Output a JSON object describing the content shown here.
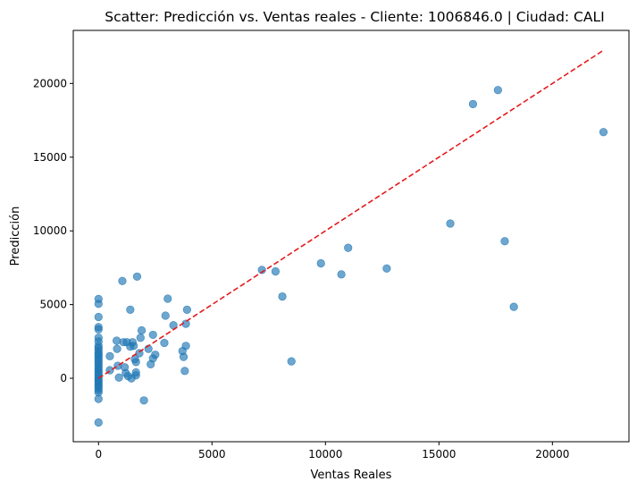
{
  "chart_data": {
    "type": "scatter",
    "title": "Scatter: Predicción vs. Ventas reales - Cliente: 1006846.0 | Ciudad: CALI",
    "xlabel": "Ventas Reales",
    "ylabel": "Predicción",
    "xlim": [
      -1113,
      23373
    ],
    "ylim": [
      -4303,
      23599
    ],
    "xticks": [
      0,
      5000,
      10000,
      15000,
      20000
    ],
    "xtick_labels": [
      "0",
      "5000",
      "10000",
      "15000",
      "20000"
    ],
    "yticks": [
      0,
      5000,
      10000,
      15000,
      20000
    ],
    "ytick_labels": [
      "0",
      "5000",
      "10000",
      "15000",
      "20000"
    ],
    "grid": false,
    "legend": false,
    "point_color": "#1f77b4",
    "reference_line": {
      "style": "dashed",
      "color": "#e41a1c",
      "x": [
        0,
        22260
      ],
      "y": [
        0,
        22260
      ]
    },
    "points": [
      [
        0,
        5380
      ],
      [
        0,
        5050
      ],
      [
        0,
        4160
      ],
      [
        0,
        3470
      ],
      [
        0,
        3320
      ],
      [
        0,
        2750
      ],
      [
        0,
        2500
      ],
      [
        0,
        2200
      ],
      [
        0,
        2050
      ],
      [
        0,
        1900
      ],
      [
        0,
        1720
      ],
      [
        0,
        1600
      ],
      [
        0,
        1450
      ],
      [
        0,
        1300
      ],
      [
        0,
        1150
      ],
      [
        0,
        1000
      ],
      [
        0,
        850
      ],
      [
        0,
        700
      ],
      [
        0,
        560
      ],
      [
        0,
        420
      ],
      [
        0,
        280
      ],
      [
        0,
        140
      ],
      [
        0,
        0
      ],
      [
        0,
        -120
      ],
      [
        0,
        -250
      ],
      [
        0,
        -380
      ],
      [
        0,
        -520
      ],
      [
        0,
        -650
      ],
      [
        0,
        -800
      ],
      [
        0,
        -950
      ],
      [
        0,
        -1400
      ],
      [
        0,
        -3000
      ],
      [
        500,
        1500
      ],
      [
        500,
        550
      ],
      [
        800,
        2550
      ],
      [
        820,
        2000
      ],
      [
        850,
        850
      ],
      [
        900,
        50
      ],
      [
        1050,
        6600
      ],
      [
        1100,
        2450
      ],
      [
        1150,
        750
      ],
      [
        1200,
        350
      ],
      [
        1250,
        2450
      ],
      [
        1300,
        150
      ],
      [
        1400,
        2150
      ],
      [
        1400,
        4650
      ],
      [
        1450,
        0
      ],
      [
        1500,
        2450
      ],
      [
        1550,
        2200
      ],
      [
        1600,
        1300
      ],
      [
        1650,
        1100
      ],
      [
        1650,
        400
      ],
      [
        1650,
        200
      ],
      [
        1700,
        6900
      ],
      [
        1800,
        1700
      ],
      [
        1850,
        2750
      ],
      [
        1900,
        3250
      ],
      [
        2000,
        -1500
      ],
      [
        2200,
        2000
      ],
      [
        2300,
        950
      ],
      [
        2400,
        2950
      ],
      [
        2400,
        1350
      ],
      [
        2500,
        1600
      ],
      [
        2900,
        2400
      ],
      [
        2950,
        4250
      ],
      [
        3050,
        5400
      ],
      [
        3300,
        3600
      ],
      [
        3700,
        1850
      ],
      [
        3750,
        1450
      ],
      [
        3800,
        500
      ],
      [
        3850,
        3700
      ],
      [
        3850,
        2200
      ],
      [
        3900,
        4650
      ],
      [
        7200,
        7350
      ],
      [
        7800,
        7250
      ],
      [
        8100,
        5550
      ],
      [
        8500,
        1150
      ],
      [
        9800,
        7800
      ],
      [
        10700,
        7050
      ],
      [
        11000,
        8850
      ],
      [
        12700,
        7450
      ],
      [
        15500,
        10500
      ],
      [
        16500,
        18600
      ],
      [
        17600,
        19550
      ],
      [
        17900,
        9300
      ],
      [
        18300,
        4850
      ],
      [
        22250,
        16700
      ]
    ]
  }
}
